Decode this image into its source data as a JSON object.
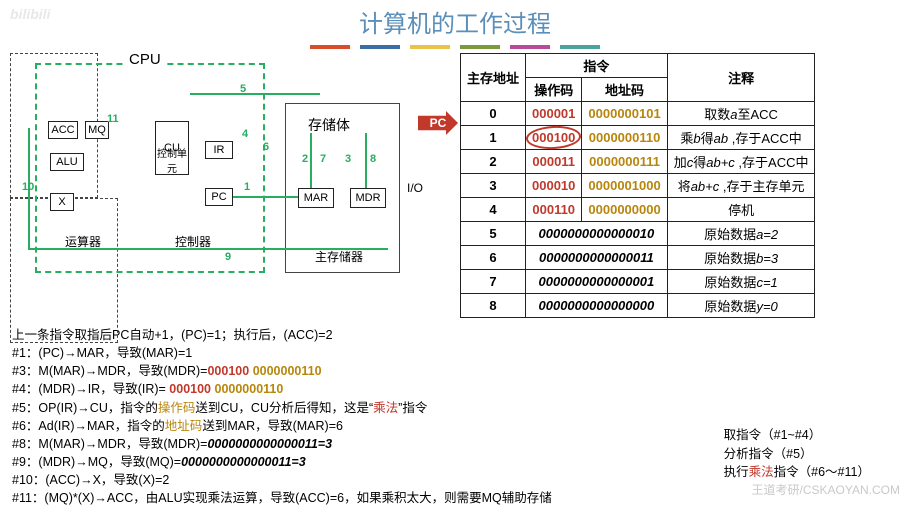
{
  "watermark_tl": "bilibili",
  "title": "计算机的工作过程",
  "color_bar": [
    "#d94e2a",
    "#3b6ea5",
    "#e8c44c",
    "#7a9a3b",
    "#b84a9a",
    "#4aa3a3"
  ],
  "diagram": {
    "cpu_label": "CPU",
    "mem_label": "存储体",
    "io_label": "I/O",
    "units": {
      "arith": "运算器",
      "ctrl": "控制器",
      "mainmem": "主存储器"
    },
    "boxes": {
      "acc": "ACC",
      "mq": "MQ",
      "alu": "ALU",
      "x": "X",
      "cu": "CU",
      "cu_sub": "控制单元",
      "ir": "IR",
      "pc": "PC",
      "mar": "MAR",
      "mdr": "MDR"
    },
    "wire_color": "#27ae60",
    "numbers": [
      "1",
      "2",
      "3",
      "4",
      "5",
      "6",
      "7",
      "8",
      "9",
      "10",
      "11"
    ]
  },
  "pc_arrow_label": "PC",
  "table": {
    "headers": {
      "addr": "主存地址",
      "instr": "指令",
      "opcode": "操作码",
      "addrcode": "地址码",
      "comment": "注释"
    },
    "rows": [
      {
        "addr": "0",
        "op": "000001",
        "ac": "0000000101",
        "comment_html": "取数<i>a</i>至ACC"
      },
      {
        "addr": "1",
        "op": "000100",
        "ac": "0000000110",
        "comment_html": "乘<i>b</i>得<i>ab</i> ,存于ACC中",
        "circle_op": true
      },
      {
        "addr": "2",
        "op": "000011",
        "ac": "0000000111",
        "comment_html": "加<i>c</i>得<i>ab+c</i> ,存于ACC中"
      },
      {
        "addr": "3",
        "op": "000010",
        "ac": "0000001000",
        "comment_html": "将<i>ab+c</i> ,存于主存单元"
      },
      {
        "addr": "4",
        "op": "000110",
        "ac": "0000000000",
        "comment_html": "停机"
      },
      {
        "addr": "5",
        "data": "0000000000000010",
        "comment_html": "原始数据<i>a=2</i>"
      },
      {
        "addr": "6",
        "data": "0000000000000011",
        "comment_html": "原始数据<i>b=3</i>"
      },
      {
        "addr": "7",
        "data": "0000000000000001",
        "comment_html": "原始数据<i>c=1</i>"
      },
      {
        "addr": "8",
        "data": "0000000000000000",
        "comment_html": "原始数据<i>y=0</i>"
      }
    ]
  },
  "trace_intro": "上一条指令取指后PC自动+1，(PC)=1；执行后，(ACC)=2",
  "trace_lines": [
    {
      "n": "#1：",
      "body": "(PC)→MAR，导致(MAR)=1"
    },
    {
      "n": "#3：",
      "body": "M(MAR)→MDR，导致(MDR)=<span class='red bld'>000100</span> <span class='addr bld'>0000000110</span>"
    },
    {
      "n": "#4：",
      "body": "(MDR)→IR，导致(IR)= <span class='red bld'>000100</span> <span class='addr bld'>0000000110</span>"
    },
    {
      "n": "#5：",
      "body": "OP(IR)→CU，指令的<span class='op'>操作码</span>送到CU，CU分析后得知，这是“<span class='red'>乘法</span>”指令"
    },
    {
      "n": "#6：",
      "body": "Ad(IR)→MAR，指令的<span class='op'>地址码</span>送到MAR，导致(MAR)=6"
    },
    {
      "n": "#8：",
      "body": "M(MAR)→MDR，导致(MDR)=<i class='bld'>0000000000000011=3</i>"
    },
    {
      "n": "#9：",
      "body": "(MDR)→MQ，导致(MQ)=<i class='bld'>0000000000000011=3</i>"
    },
    {
      "n": "#10：",
      "body": "(ACC)→X，导致(X)=2"
    },
    {
      "n": "#11：",
      "body": "(MQ)*(X)→ACC，由ALU实现乘法运算，导致(ACC)=6，如果乘积太大，则需要MQ辅助存储"
    }
  ],
  "side_note": {
    "l1": "取指令（#1~#4）",
    "l2": "分析指令（#5）",
    "l3_pre": "执行",
    "l3_red": "乘法",
    "l3_post": "指令（#6～#11）"
  },
  "footer_wm": "王道考研/CSKAOYAN.COM"
}
